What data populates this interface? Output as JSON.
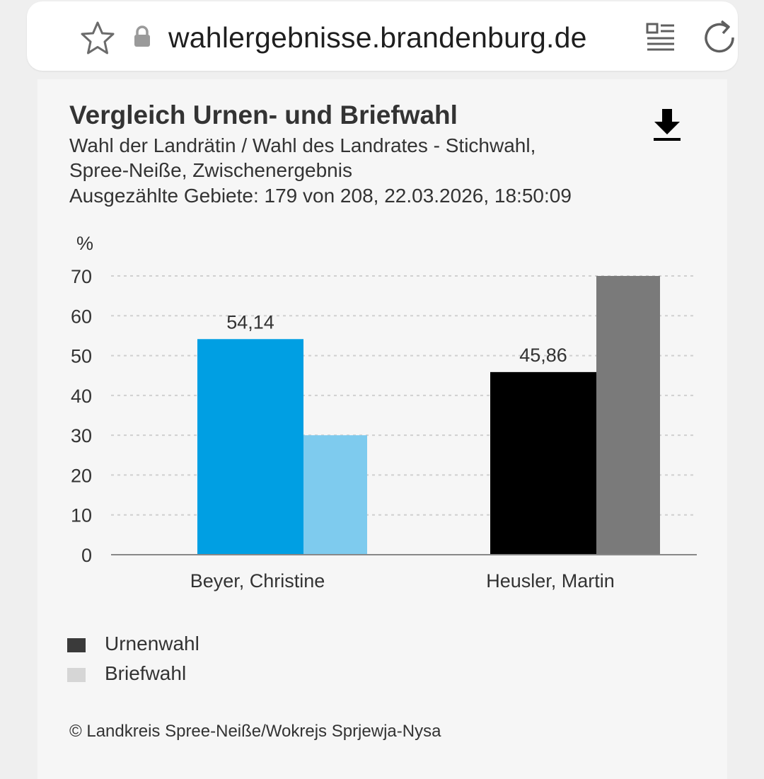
{
  "browser": {
    "url": "wahlergebnisse.brandenburg.de",
    "icons": [
      "star-icon",
      "lock-icon",
      "reader-mode-icon",
      "reload-icon"
    ]
  },
  "card": {
    "title": "Vergleich Urnen- und Briefwahl",
    "subtitle_lines": [
      "Wahl der Landrätin / Wahl des Landrates - Stichwahl,",
      "Spree-Neiße, Zwischenergebnis",
      "Ausgezählte Gebiete: 179 von 208, 22.03.2026, 18:50:09"
    ],
    "download_icon": "download-icon",
    "credit": "© Landkreis Spree-Neiße/Wokrejs Sprjewja-Nysa"
  },
  "colors": {
    "beyer_urne": "#009fe3",
    "beyer_brief": "#7ecbee",
    "heusler_urne": "#000000",
    "heusler_brief": "#7a7a7a",
    "legend_urne": "#3a3a3a",
    "legend_brief": "#d6d6d6"
  },
  "chart_data": {
    "type": "bar",
    "title": "Vergleich Urnen- und Briefwahl",
    "categories": [
      "Beyer, Christine",
      "Heusler, Martin"
    ],
    "series": [
      {
        "name": "Urnenwahl",
        "values": [
          54.14,
          45.86
        ],
        "labels": [
          "54,14",
          "45,86"
        ]
      },
      {
        "name": "Briefwahl",
        "values": [
          30,
          70
        ]
      }
    ],
    "ylabel": "%",
    "yticks": [
      "0",
      "10",
      "20",
      "30",
      "40",
      "50",
      "60",
      "70"
    ],
    "ylim": [
      0,
      70
    ],
    "grid": true,
    "legend": "bottom-left"
  }
}
